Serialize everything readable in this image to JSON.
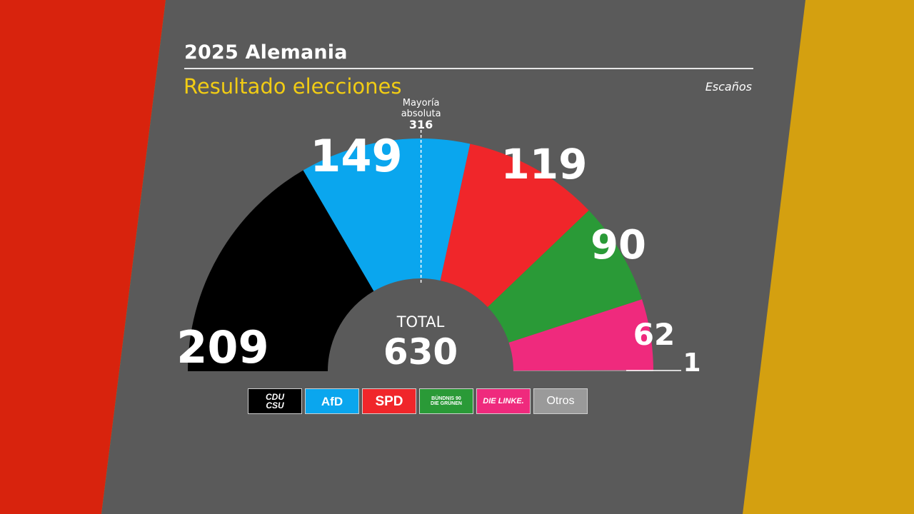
{
  "header": {
    "title": "2025 Alemania",
    "subtitle": "Resultado elecciones",
    "units": "Escaños"
  },
  "colors": {
    "left_band": "#d8230d",
    "right_band": "#d4a010",
    "panel": "#5a5a5a"
  },
  "chart_data": {
    "type": "pie",
    "subtype": "half-donut",
    "total_label": "TOTAL",
    "total": 630,
    "majority": {
      "label_1": "Mayoría",
      "label_2": "absoluta",
      "value": 316
    },
    "series": [
      {
        "name": "CDU/CSU",
        "value": 209,
        "color": "#000000"
      },
      {
        "name": "AfD",
        "value": 149,
        "color": "#0aa6ee"
      },
      {
        "name": "SPD",
        "value": 119,
        "color": "#f0262a"
      },
      {
        "name": "BÜNDNIS 90/DIE GRÜNEN",
        "value": 90,
        "color": "#2a9a37"
      },
      {
        "name": "DIE LINKE.",
        "value": 62,
        "color": "#ef2a7d"
      },
      {
        "name": "Otros",
        "value": 1,
        "color": "#9a9a9a"
      }
    ]
  },
  "legend": [
    {
      "label": "CDU\nCSU",
      "bg": "#000000"
    },
    {
      "label": "AfD",
      "bg": "#0aa6ee"
    },
    {
      "label": "SPD",
      "bg": "#f0262a"
    },
    {
      "label": "BÜNDNIS 90\nDIE GRÜNEN",
      "bg": "#2a9a37"
    },
    {
      "label": "DIE LINKE.",
      "bg": "#ef2a7d"
    },
    {
      "label": "Otros",
      "bg": "#9a9a9a"
    }
  ]
}
